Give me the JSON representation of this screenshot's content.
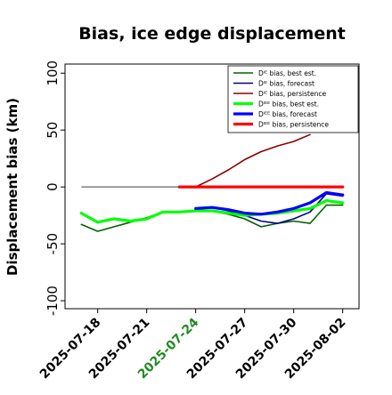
{
  "chart_data": {
    "type": "line",
    "title": "Bias, ice edge displacement",
    "xlabel": "",
    "ylabel": "Displacement bias (km)",
    "ylim": [
      -107,
      108
    ],
    "yticks": [
      -100,
      -50,
      0,
      50,
      100
    ],
    "xlim": [
      "2025-07-16",
      "2025-08-03"
    ],
    "xticks": [
      "2025-07-18",
      "2025-07-21",
      "2025-07-24",
      "2025-07-27",
      "2025-07-30",
      "2025-08-02"
    ],
    "xtick_colors": [
      "#000000",
      "#000000",
      "#228B22",
      "#000000",
      "#000000",
      "#000000"
    ],
    "grid": false,
    "legend_position": "top-right",
    "reference_line": {
      "color": "#666666",
      "x": [
        "2025-07-17",
        "2025-07-23"
      ],
      "y": [
        0,
        0
      ]
    },
    "series": [
      {
        "name": "Dᴵᴱ bias, best est.",
        "color": "#006400",
        "width": 1.6,
        "x": [
          "2025-07-17",
          "2025-07-18",
          "2025-07-19",
          "2025-07-20",
          "2025-07-21",
          "2025-07-22",
          "2025-07-23",
          "2025-07-24",
          "2025-07-25",
          "2025-07-26",
          "2025-07-27",
          "2025-07-28",
          "2025-07-29",
          "2025-07-30",
          "2025-07-31",
          "2025-08-01",
          "2025-08-02"
        ],
        "values": [
          -33,
          -39,
          -35,
          -31,
          -27,
          -22,
          -22,
          -21,
          -21,
          -24,
          -28,
          -35,
          -32,
          -30,
          -32,
          -16,
          -16
        ]
      },
      {
        "name": "Dᴵᴱ bias, forecast",
        "color": "#00008B",
        "width": 1.6,
        "x": [
          "2025-07-24",
          "2025-07-25",
          "2025-07-26",
          "2025-07-27",
          "2025-07-28",
          "2025-07-29",
          "2025-07-30",
          "2025-07-31",
          "2025-08-01",
          "2025-08-02"
        ],
        "values": [
          -19,
          -18,
          -21,
          -25,
          -30,
          -32,
          -28,
          -22,
          -6,
          -8
        ]
      },
      {
        "name": "Dᴵᴱ bias, persistence",
        "color": "#8B0000",
        "width": 1.6,
        "x": [
          "2025-07-24",
          "2025-07-25",
          "2025-07-26",
          "2025-07-27",
          "2025-07-28",
          "2025-07-29",
          "2025-07-30",
          "2025-07-31"
        ],
        "values": [
          0,
          7,
          15,
          24,
          31,
          36,
          40,
          46
        ]
      },
      {
        "name": "Dᴵᴱᴱ bias, best est.",
        "color": "#00FF00",
        "width": 3.2,
        "x": [
          "2025-07-17",
          "2025-07-18",
          "2025-07-19",
          "2025-07-20",
          "2025-07-21",
          "2025-07-22",
          "2025-07-23",
          "2025-07-24",
          "2025-07-25",
          "2025-07-26",
          "2025-07-27",
          "2025-07-28",
          "2025-07-29",
          "2025-07-30",
          "2025-07-31",
          "2025-08-01",
          "2025-08-02"
        ],
        "values": [
          -23,
          -31,
          -28,
          -30,
          -28,
          -22,
          -22,
          -21,
          -21,
          -23,
          -25,
          -24,
          -23,
          -21,
          -19,
          -12,
          -14
        ]
      },
      {
        "name": "Dᴵᴱᴱ bias, forecast",
        "color": "#0000FF",
        "width": 3.2,
        "x": [
          "2025-07-24",
          "2025-07-25",
          "2025-07-26",
          "2025-07-27",
          "2025-07-28",
          "2025-07-29",
          "2025-07-30",
          "2025-07-31",
          "2025-08-01",
          "2025-08-02"
        ],
        "values": [
          -19,
          -18,
          -20,
          -23,
          -24,
          -22,
          -19,
          -14,
          -5,
          -7
        ]
      },
      {
        "name": "Dᴵᴱᴱ bias, persistence",
        "color": "#FF0000",
        "width": 3.2,
        "x": [
          "2025-07-23",
          "2025-07-24",
          "2025-07-25",
          "2025-07-26",
          "2025-07-27",
          "2025-07-28",
          "2025-07-29",
          "2025-07-30",
          "2025-07-31",
          "2025-08-01",
          "2025-08-02"
        ],
        "values": [
          0,
          0,
          0,
          0,
          0,
          0,
          0,
          0,
          0,
          0,
          0
        ]
      }
    ]
  }
}
